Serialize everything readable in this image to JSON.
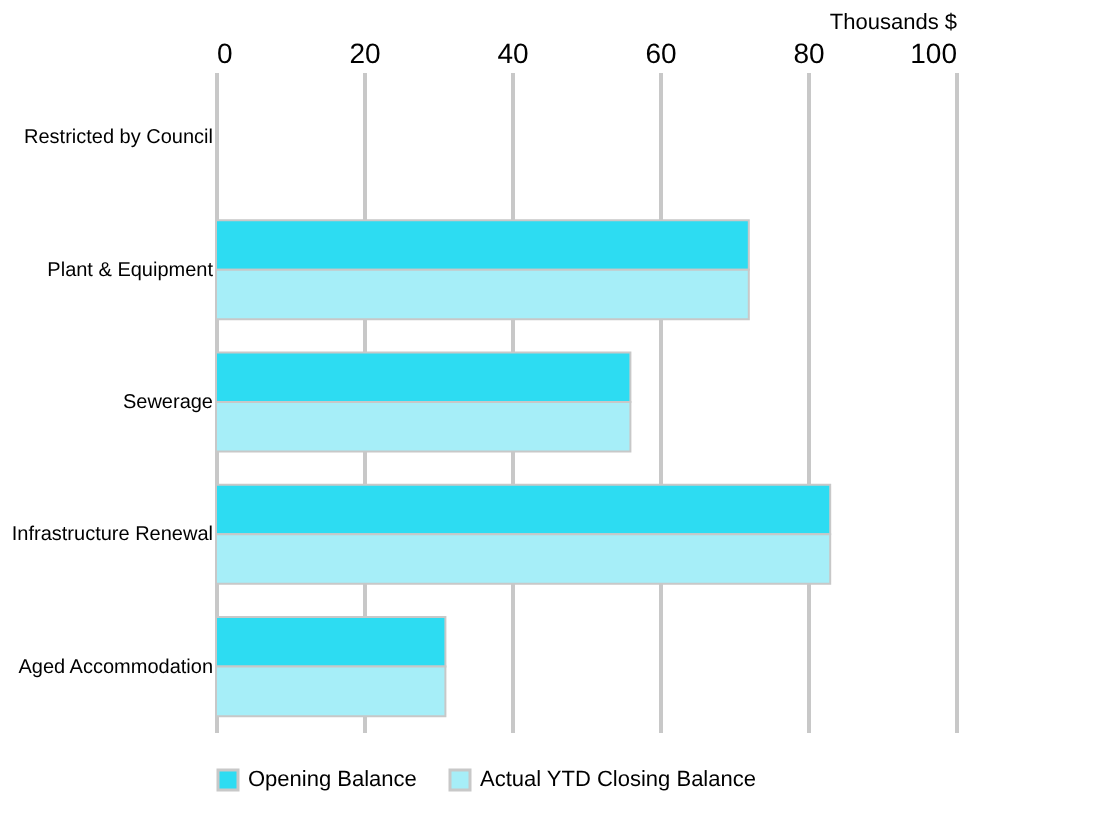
{
  "chart_data": {
    "type": "bar",
    "orientation": "horizontal",
    "xlabel": "Thousands $",
    "categories": [
      "Restricted by Council",
      "Plant & Equipment",
      "Sewerage",
      "Infrastructure Renewal",
      "Aged Accommodation"
    ],
    "series": [
      {
        "name": "Opening  Balance",
        "color": "#2ddcf2",
        "values": [
          null,
          72,
          56,
          83,
          31
        ]
      },
      {
        "name": "Actual YTD Closing Balance",
        "color": "#a6eef8",
        "values": [
          null,
          72,
          56,
          83,
          31
        ]
      }
    ],
    "xlim": [
      0,
      100
    ],
    "xticks": [
      0,
      20,
      40,
      60,
      80,
      100
    ],
    "grid": "x",
    "legend": "bottom"
  }
}
